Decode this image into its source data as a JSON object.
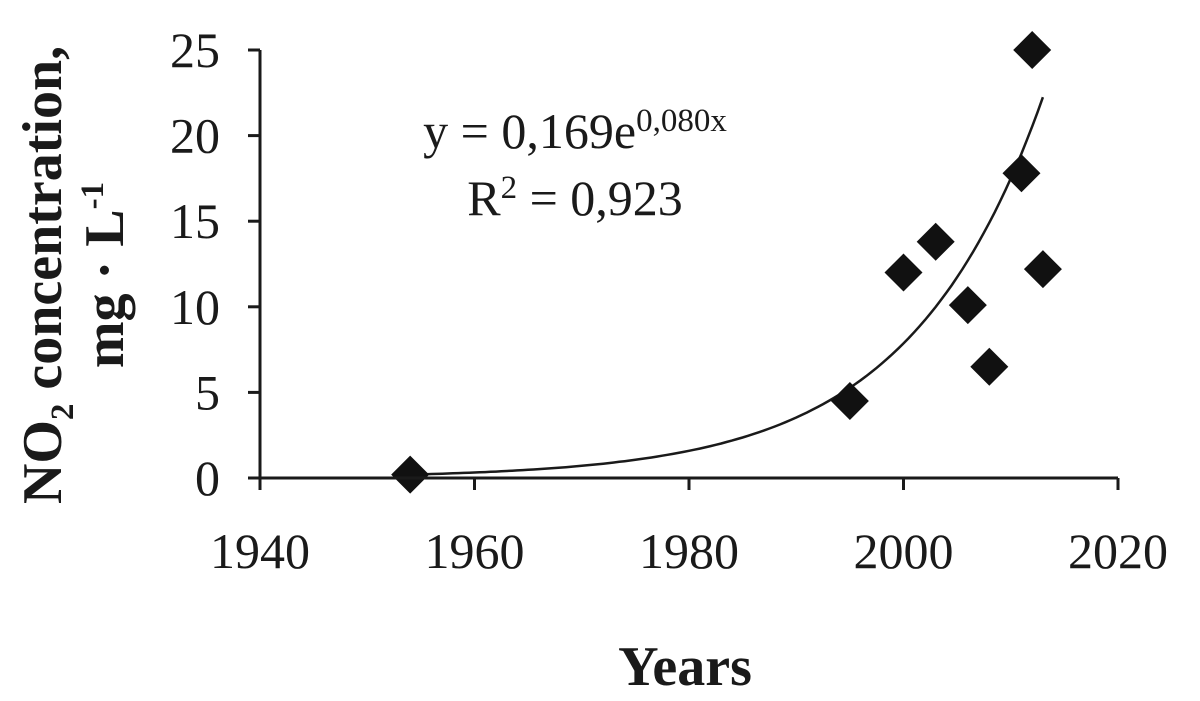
{
  "chart_data": {
    "type": "scatter",
    "xlabel": "Years",
    "ylabel_main": "NO",
    "ylabel_sub": "2",
    "ylabel_rest": " concentration,",
    "ylabel_unit_main": "mg · L",
    "ylabel_unit_sup": "-1",
    "xlim": [
      1940,
      2020
    ],
    "ylim": [
      0,
      25
    ],
    "x_ticks": [
      "1940",
      "1960",
      "1980",
      "2000",
      "2020"
    ],
    "y_ticks": [
      "0",
      "5",
      "10",
      "15",
      "20",
      "25"
    ],
    "grid": false,
    "legend": "none",
    "points": [
      {
        "x": 1954,
        "y": 0.2
      },
      {
        "x": 1995,
        "y": 4.5
      },
      {
        "x": 2000,
        "y": 12.0
      },
      {
        "x": 2003,
        "y": 13.8
      },
      {
        "x": 2006,
        "y": 10.1
      },
      {
        "x": 2008,
        "y": 6.5
      },
      {
        "x": 2011,
        "y": 17.8
      },
      {
        "x": 2012,
        "y": 25.0
      },
      {
        "x": 2013,
        "y": 12.2
      }
    ],
    "trendline": {
      "type": "exponential",
      "a": 0.169,
      "b": 0.08,
      "x_index_start": 1,
      "x_origin": 1952,
      "x_from": 1954,
      "x_to": 2013
    },
    "equation_main": "y = 0,169e",
    "equation_exp": "0,080x",
    "r2_prefix": "R",
    "r2_sup": "2",
    "r2_value": " = 0,923"
  }
}
